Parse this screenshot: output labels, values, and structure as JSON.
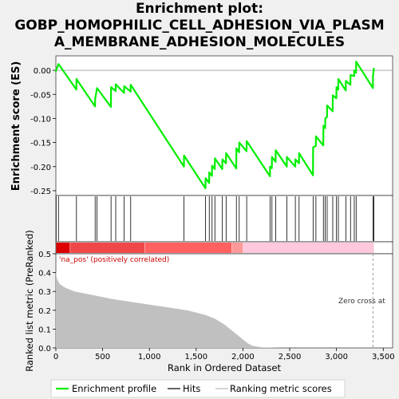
{
  "title_lines": [
    "Enrichment plot:",
    "GOBP_HOMOPHILIC_CELL_ADHESION_VIA_PLASM",
    "A_MEMBRANE_ADHESION_MOLECULES"
  ],
  "chart_data": {
    "type": "line",
    "xlabel": "Rank in Ordered Dataset",
    "xlim": [
      0,
      3600
    ],
    "x_ticks": [
      0,
      500,
      1000,
      1500,
      2000,
      2500,
      3000,
      3500
    ],
    "x_tick_labels": [
      "0",
      "500",
      "1,000",
      "1,500",
      "2,000",
      "2,500",
      "3,000",
      "3,500"
    ],
    "es_panel": {
      "ylabel": "Enrichment score (ES)",
      "ylim": [
        -0.26,
        0.03
      ],
      "y_ticks": [
        0.0,
        -0.05,
        -0.1,
        -0.15,
        -0.2,
        -0.25
      ],
      "y_tick_labels": [
        "0.00",
        "-0.05",
        "-0.10",
        "-0.15",
        "-0.20",
        "-0.25"
      ],
      "line_color": "#00ee00",
      "hits": [
        3,
        28,
        220,
        420,
        440,
        590,
        640,
        730,
        800,
        1370,
        1600,
        1640,
        1670,
        1700,
        1780,
        1820,
        1930,
        1960,
        2040,
        2290,
        2310,
        2350,
        2470,
        2560,
        2600,
        2750,
        2780,
        2860,
        2880,
        2900,
        2960,
        3000,
        3020,
        3100,
        3150,
        3190,
        3210,
        3390,
        3400
      ],
      "es_points": [
        [
          0,
          -0.003
        ],
        [
          3,
          0.0
        ],
        [
          28,
          0.013
        ],
        [
          219,
          -0.04
        ],
        [
          220,
          -0.018
        ],
        [
          419,
          -0.075
        ],
        [
          420,
          -0.06
        ],
        [
          440,
          -0.037
        ],
        [
          589,
          -0.076
        ],
        [
          590,
          -0.035
        ],
        [
          639,
          -0.043
        ],
        [
          640,
          -0.029
        ],
        [
          729,
          -0.047
        ],
        [
          730,
          -0.033
        ],
        [
          799,
          -0.044
        ],
        [
          800,
          -0.03
        ],
        [
          1369,
          -0.2
        ],
        [
          1370,
          -0.177
        ],
        [
          1599,
          -0.245
        ],
        [
          1600,
          -0.224
        ],
        [
          1639,
          -0.234
        ],
        [
          1640,
          -0.212
        ],
        [
          1669,
          -0.219
        ],
        [
          1670,
          -0.198
        ],
        [
          1699,
          -0.205
        ],
        [
          1700,
          -0.183
        ],
        [
          1779,
          -0.205
        ],
        [
          1780,
          -0.185
        ],
        [
          1819,
          -0.193
        ],
        [
          1820,
          -0.172
        ],
        [
          1929,
          -0.204
        ],
        [
          1930,
          -0.162
        ],
        [
          1959,
          -0.17
        ],
        [
          1960,
          -0.15
        ],
        [
          2039,
          -0.168
        ],
        [
          2040,
          -0.147
        ],
        [
          2289,
          -0.22
        ],
        [
          2290,
          -0.2
        ],
        [
          2309,
          -0.203
        ],
        [
          2310,
          -0.18
        ],
        [
          2349,
          -0.19
        ],
        [
          2350,
          -0.166
        ],
        [
          2469,
          -0.2
        ],
        [
          2470,
          -0.18
        ],
        [
          2559,
          -0.2
        ],
        [
          2560,
          -0.185
        ],
        [
          2599,
          -0.193
        ],
        [
          2600,
          -0.172
        ],
        [
          2749,
          -0.218
        ],
        [
          2750,
          -0.16
        ],
        [
          2779,
          -0.157
        ],
        [
          2780,
          -0.137
        ],
        [
          2859,
          -0.156
        ],
        [
          2860,
          -0.115
        ],
        [
          2879,
          -0.12
        ],
        [
          2880,
          -0.1
        ],
        [
          2899,
          -0.097
        ],
        [
          2900,
          -0.073
        ],
        [
          2959,
          -0.085
        ],
        [
          2960,
          -0.052
        ],
        [
          2999,
          -0.058
        ],
        [
          3000,
          -0.035
        ],
        [
          3019,
          -0.04
        ],
        [
          3020,
          -0.018
        ],
        [
          3099,
          -0.042
        ],
        [
          3100,
          -0.022
        ],
        [
          3149,
          -0.03
        ],
        [
          3150,
          -0.01
        ],
        [
          3189,
          -0.012
        ],
        [
          3190,
          0.0
        ],
        [
          3209,
          -0.005
        ],
        [
          3210,
          0.018
        ],
        [
          3389,
          -0.037
        ],
        [
          3390,
          -0.012
        ],
        [
          3400,
          0.005
        ]
      ]
    },
    "hit_bar": {
      "colors_low_to_high": [
        "#dd0000",
        "#f04848",
        "#ff6060",
        "#ff9999",
        "#ffc8dc",
        "#f6c2f0"
      ]
    },
    "metric_panel": {
      "ylabel": "Ranked list metric (PreRanked)",
      "ylim": [
        0.0,
        0.5
      ],
      "y_ticks": [
        0.0,
        0.1,
        0.2,
        0.3,
        0.4,
        0.5
      ],
      "y_tick_labels": [
        "0.0",
        "0.1",
        "0.2",
        "0.3",
        "0.4",
        "0.5"
      ],
      "curve": [
        [
          0,
          0.41
        ],
        [
          10,
          0.37
        ],
        [
          40,
          0.34
        ],
        [
          100,
          0.32
        ],
        [
          200,
          0.3
        ],
        [
          400,
          0.28
        ],
        [
          600,
          0.26
        ],
        [
          800,
          0.245
        ],
        [
          1000,
          0.23
        ],
        [
          1200,
          0.215
        ],
        [
          1400,
          0.2
        ],
        [
          1600,
          0.175
        ],
        [
          1700,
          0.155
        ],
        [
          1800,
          0.125
        ],
        [
          1900,
          0.085
        ],
        [
          2000,
          0.045
        ],
        [
          2050,
          0.025
        ],
        [
          2100,
          0.012
        ],
        [
          2200,
          0.003
        ],
        [
          2400,
          0.0
        ],
        [
          3400,
          0.0
        ]
      ],
      "zero_cross": 3390,
      "label_positive": "'na_pos' (positively correlated)",
      "label_zero": "Zero cross at"
    },
    "legend": [
      "Enrichment profile",
      "Hits",
      "Ranking metric scores"
    ]
  }
}
